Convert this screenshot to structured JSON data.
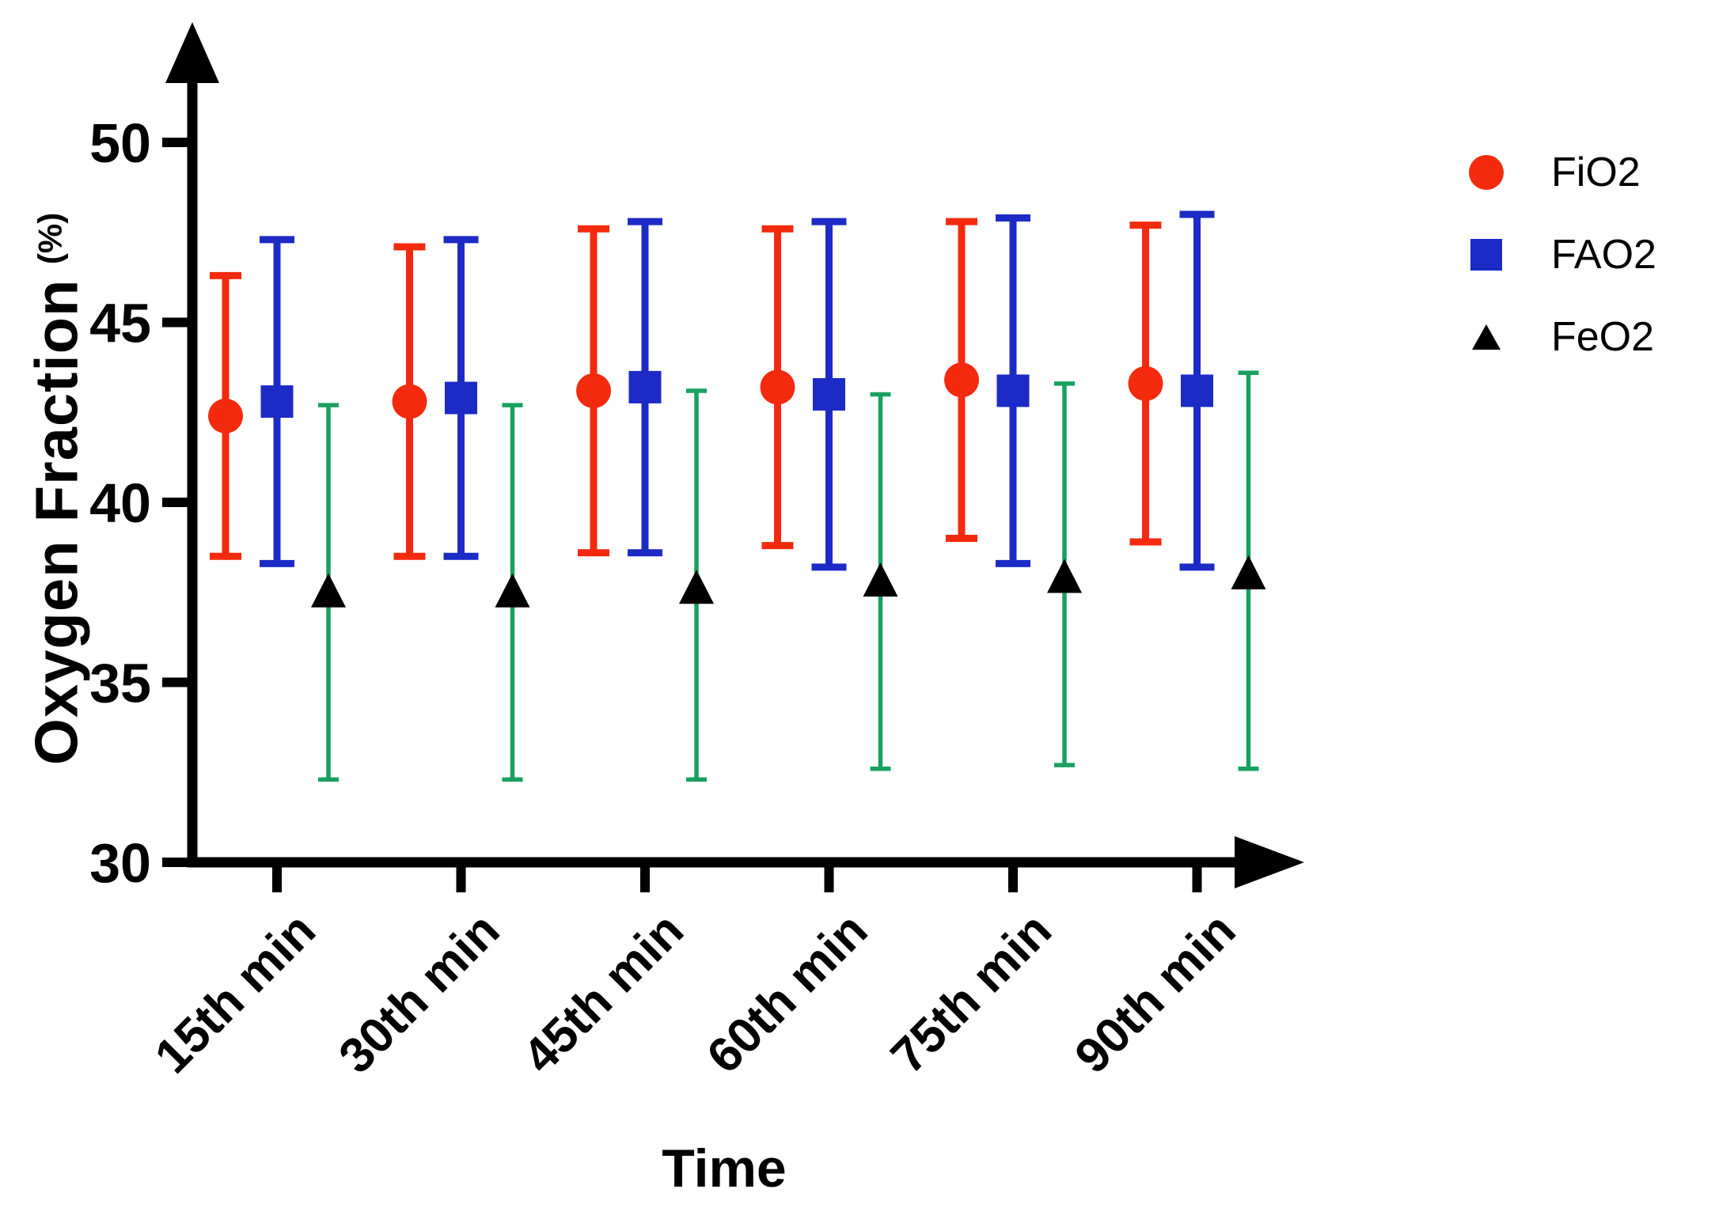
{
  "chart_data": {
    "type": "scatter",
    "title": "",
    "xlabel": "Time",
    "ylabel": "Oxygen Fraction",
    "ylabel_unit": "(%)",
    "categories": [
      "15th min",
      "30th min",
      "45th min",
      "60th min",
      "75th min",
      "90th min"
    ],
    "y_ticks": [
      30,
      35,
      40,
      45,
      50
    ],
    "ylim": [
      30,
      52.5
    ],
    "grid": false,
    "legend_position": "right",
    "colors": {
      "fio2": "#f42a0e",
      "fao2": "#1c2bc6",
      "feo2_marker": "#000000",
      "feo2_error": "#19a05f",
      "axis": "#000000"
    },
    "series": [
      {
        "name": "FiO2",
        "marker": "circle",
        "marker_color": "#f42a0e",
        "error_color": "#f42a0e",
        "means": [
          42.4,
          42.8,
          43.1,
          43.2,
          43.4,
          43.3
        ],
        "upper": [
          46.3,
          47.1,
          47.6,
          47.6,
          47.8,
          47.7
        ],
        "lower": [
          38.5,
          38.5,
          38.6,
          38.8,
          39.0,
          38.9
        ]
      },
      {
        "name": "FAO2",
        "marker": "square",
        "marker_color": "#1c2bc6",
        "error_color": "#1c2bc6",
        "means": [
          42.8,
          42.9,
          43.2,
          43.0,
          43.1,
          43.1
        ],
        "upper": [
          47.3,
          47.3,
          47.8,
          47.8,
          47.9,
          48.0
        ],
        "lower": [
          38.3,
          38.5,
          38.6,
          38.2,
          38.3,
          38.2
        ]
      },
      {
        "name": "FeO2",
        "marker": "triangle",
        "marker_color": "#000000",
        "error_color": "#19a05f",
        "means": [
          37.5,
          37.5,
          37.6,
          37.8,
          37.9,
          38.0
        ],
        "upper": [
          42.7,
          42.7,
          43.1,
          43.0,
          43.3,
          43.6
        ],
        "lower": [
          32.3,
          32.3,
          32.3,
          32.6,
          32.7,
          32.6
        ]
      }
    ]
  }
}
